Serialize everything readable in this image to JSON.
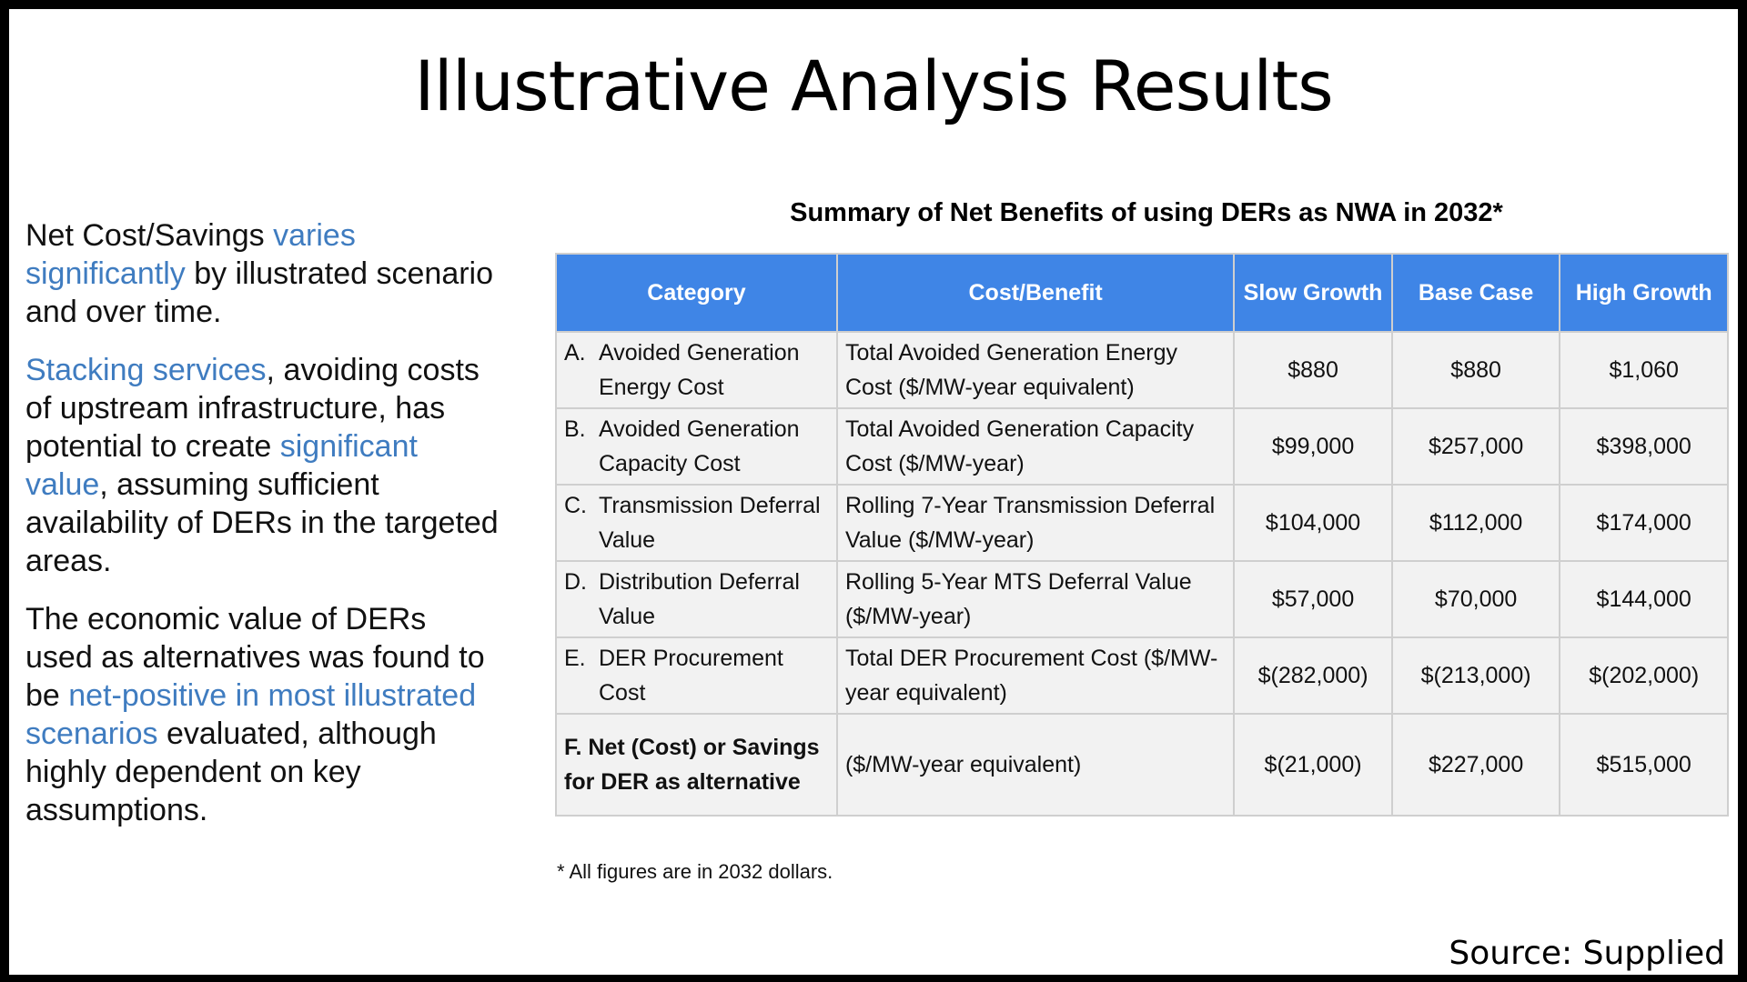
{
  "title": "Illustrative Analysis Results",
  "left": {
    "p1": {
      "t1": "Net Cost/Savings ",
      "h1": "varies significantly",
      "t2": " by illustrated scenario and over time."
    },
    "p2": {
      "h1": "Stacking services",
      "t1": ", avoiding costs of upstream infrastructure, has potential to create ",
      "h2": "significant value",
      "t2": ", assuming sufficient availability of DERs in the targeted areas."
    },
    "p3": {
      "t1": "The economic value of DERs used as alternatives was found to be ",
      "h1": "net-positive in most illustrated scenarios",
      "t2": " evaluated, although highly dependent on key assumptions."
    }
  },
  "table": {
    "title": "Summary of Net Benefits of using DERs as NWA in 2032*",
    "headers": [
      "Category",
      "Cost/Benefit",
      "Slow Growth",
      "Base Case",
      "High Growth"
    ],
    "rows": [
      {
        "letter": "A.",
        "category": "Avoided Generation Energy Cost",
        "cost_benefit": "Total Avoided Generation Energy Cost ($/MW-year equivalent)",
        "slow": "$880",
        "base": "$880",
        "high": "$1,060"
      },
      {
        "letter": "B.",
        "category": "Avoided Generation Capacity Cost",
        "cost_benefit": "Total Avoided Generation Capacity Cost ($/MW-year)",
        "slow": "$99,000",
        "base": "$257,000",
        "high": "$398,000"
      },
      {
        "letter": "C.",
        "category": "Transmission Deferral Value",
        "cost_benefit": "Rolling 7-Year Transmission Deferral Value ($/MW-year)",
        "slow": "$104,000",
        "base": "$112,000",
        "high": "$174,000"
      },
      {
        "letter": "D.",
        "category": "Distribution Deferral Value",
        "cost_benefit": "Rolling 5-Year MTS Deferral Value ($/MW-year)",
        "slow": "$57,000",
        "base": "$70,000",
        "high": "$144,000"
      },
      {
        "letter": "E.",
        "category": "DER Procurement Cost",
        "cost_benefit": "Total DER Procurement Cost ($/MW-year equivalent)",
        "slow": "$(282,000)",
        "base": "$(213,000)",
        "high": "$(202,000)"
      },
      {
        "letter": "",
        "category": "F. Net (Cost) or Savings for DER as alternative",
        "cost_benefit": "($/MW-year equivalent)",
        "slow": "$(21,000)",
        "base": "$227,000",
        "high": "$515,000"
      }
    ],
    "footnote": "* All figures are in 2032 dollars."
  },
  "source": "Source: Supplied",
  "colors": {
    "header_bg": "#3f85e6",
    "highlight": "#3f7cc0",
    "cell_bg": "#f2f2f2"
  }
}
